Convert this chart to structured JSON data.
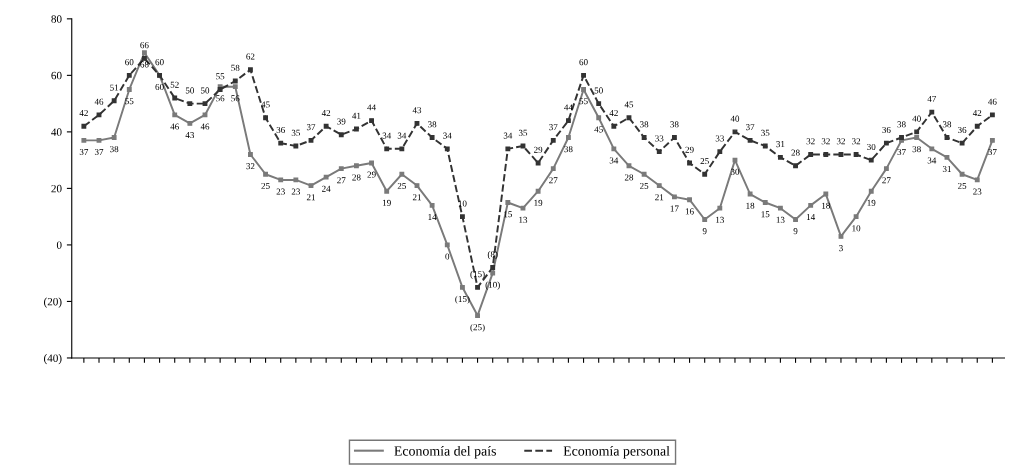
{
  "chart_data": {
    "type": "line",
    "categories": [
      null,
      null,
      null,
      null,
      null,
      null,
      null,
      null,
      null,
      null,
      null,
      null,
      null,
      null,
      null,
      null,
      null,
      null,
      null,
      null,
      null,
      null,
      null,
      null,
      null,
      null,
      null,
      null,
      null,
      null,
      null,
      null,
      null,
      null,
      null,
      null,
      null,
      null,
      null,
      null,
      null,
      null,
      null,
      null,
      null,
      null,
      null,
      null,
      null,
      null,
      null,
      null,
      null,
      null,
      null,
      null,
      null,
      null,
      null,
      null,
      null
    ],
    "series": [
      {
        "name": "Economía del país",
        "color": "#7a7a7a",
        "line_style": "solid",
        "values": [
          37,
          37,
          38,
          55,
          68,
          60,
          46,
          43,
          46,
          56,
          56,
          32,
          25,
          23,
          23,
          21,
          24,
          27,
          28,
          29,
          19,
          25,
          21,
          14,
          0,
          -15,
          -25,
          -10,
          15,
          13,
          19,
          27,
          38,
          55,
          45,
          34,
          28,
          25,
          21,
          17,
          16,
          9,
          13,
          30,
          18,
          15,
          13,
          9,
          14,
          18,
          3,
          10,
          19,
          27,
          37,
          38,
          34,
          31,
          25,
          23,
          37
        ],
        "value_labels": [
          "37",
          "37",
          "38",
          "55",
          "68",
          "60",
          "46",
          "43",
          "46",
          "56",
          "56",
          "32",
          "25",
          "23",
          "23",
          "21",
          "24",
          "27",
          "28",
          "29",
          "19",
          "25",
          "21",
          "14",
          "0",
          "(15)",
          "(25)",
          "(10)",
          "15",
          "13",
          "19",
          "27",
          "38",
          "55",
          "45",
          "34",
          "28",
          "25",
          "21",
          "17",
          "16",
          "9",
          "13",
          "30",
          "18",
          "15",
          "13",
          "9",
          "14",
          "18",
          "3",
          "10",
          "19",
          "27",
          "37",
          "38",
          "34",
          "31",
          "25",
          "23",
          "37"
        ]
      },
      {
        "name": "Economía personal",
        "color": "#333333",
        "line_style": "dashed",
        "values": [
          42,
          46,
          51,
          60,
          66,
          60,
          52,
          50,
          50,
          55,
          58,
          62,
          45,
          36,
          35,
          37,
          42,
          39,
          41,
          44,
          34,
          34,
          43,
          38,
          34,
          10,
          -15,
          -8,
          34,
          35,
          29,
          37,
          44,
          60,
          50,
          42,
          45,
          38,
          33,
          38,
          29,
          25,
          33,
          40,
          37,
          35,
          31,
          28,
          32,
          32,
          32,
          32,
          30,
          36,
          38,
          40,
          47,
          38,
          36,
          42,
          46
        ],
        "value_labels": [
          "42",
          "46",
          "51",
          "60",
          "66",
          "60",
          "52",
          "50",
          "50",
          "55",
          "58",
          "62",
          "45",
          "36",
          "35",
          "37",
          "42",
          "39",
          "41",
          "44",
          "34",
          "34",
          "43",
          "38",
          "34",
          "10",
          "(15)",
          "(8)",
          "34",
          "35",
          "29",
          "37",
          "44",
          "60",
          "50",
          "42",
          "45",
          "38",
          "33",
          "38",
          "29",
          "25",
          "33",
          "40",
          "37",
          "35",
          "31",
          "28",
          "32",
          "32",
          "32",
          "32",
          "30",
          "36",
          "38",
          "40",
          "47",
          "38",
          "36",
          "42",
          "46"
        ]
      }
    ],
    "ylim": [
      -40,
      80
    ],
    "yticks": [
      {
        "value": -40,
        "label": "(40)"
      },
      {
        "value": -20,
        "label": "(20)"
      },
      0,
      20,
      40,
      60,
      80
    ],
    "grid": false,
    "legend": "bottom",
    "marker": "square"
  }
}
